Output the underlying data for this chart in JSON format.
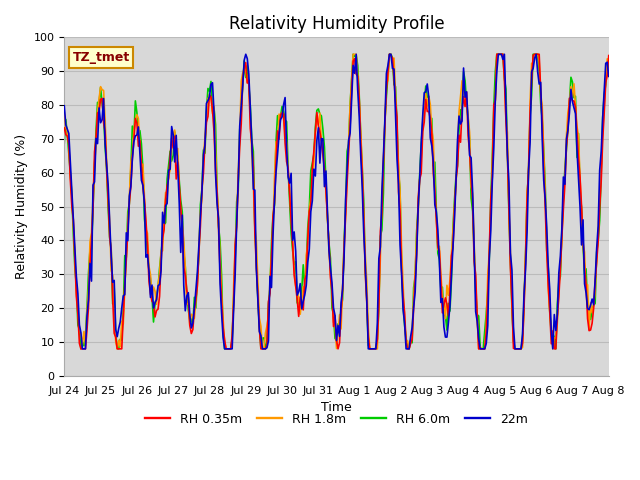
{
  "title": "Relativity Humidity Profile",
  "xlabel": "Time",
  "ylabel": "Relativity Humidity (%)",
  "ylim": [
    0,
    100
  ],
  "xlim": [
    0,
    360
  ],
  "plot_bg_color": "#d8d8d8",
  "fig_bg_color": "#ffffff",
  "grid_color": "#cccccc",
  "annotation_text": "TZ_tmet",
  "annotation_bg": "#ffffcc",
  "annotation_border": "#cc8800",
  "annotation_text_color": "#880000",
  "series_colors": [
    "#ff0000",
    "#ff9900",
    "#00cc00",
    "#0000cc"
  ],
  "series_labels": [
    "RH 0.35m",
    "RH 1.8m",
    "RH 6.0m",
    "22m"
  ],
  "xtick_labels": [
    "Jul 24",
    "Jul 25",
    "Jul 26",
    "Jul 27",
    "Jul 28",
    "Jul 29",
    "Jul 30",
    "Jul 31",
    "Aug 1",
    "Aug 2",
    "Aug 3",
    "Aug 4",
    "Aug 5",
    "Aug 6",
    "Aug 7",
    "Aug 8"
  ],
  "xtick_positions": [
    0,
    24,
    48,
    72,
    96,
    120,
    144,
    168,
    192,
    216,
    240,
    264,
    288,
    312,
    336,
    360
  ],
  "title_fontsize": 12,
  "label_fontsize": 9,
  "tick_fontsize": 8,
  "legend_fontsize": 9,
  "linewidth": 1.2
}
